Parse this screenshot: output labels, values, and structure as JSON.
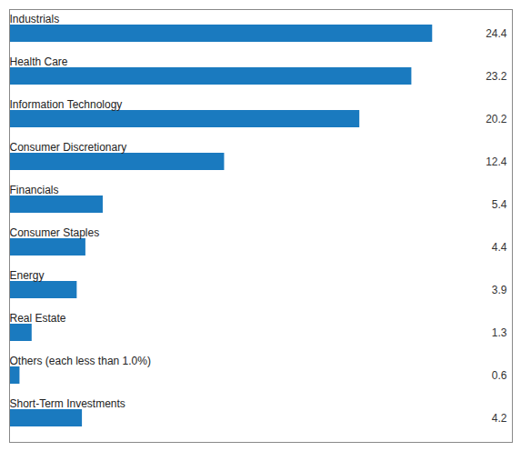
{
  "chart_data": {
    "type": "bar",
    "orientation": "horizontal",
    "categories": [
      "Industrials",
      "Health Care",
      "Information Technology",
      "Consumer Discretionary",
      "Financials",
      "Consumer Staples",
      "Energy",
      "Real Estate",
      "Others (each less than 1.0%)",
      "Short-Term Investments"
    ],
    "values": [
      24.4,
      23.2,
      20.2,
      12.4,
      5.4,
      4.4,
      3.9,
      1.3,
      0.6,
      4.2
    ],
    "color": "#1a7abf",
    "xlim": [
      0,
      29
    ],
    "grid": false,
    "tick_labels": false,
    "data_labels": true
  }
}
